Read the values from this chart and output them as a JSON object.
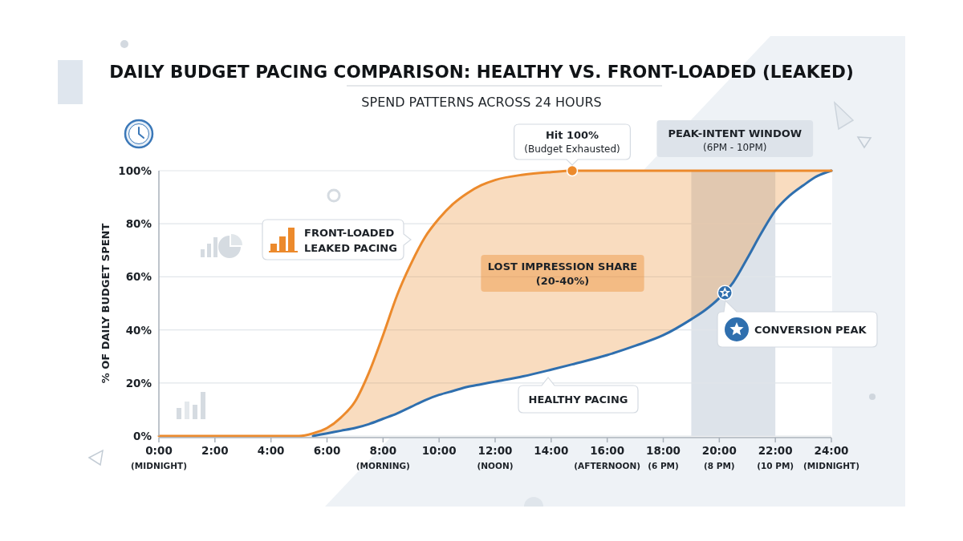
{
  "chart_data": {
    "type": "line",
    "title": "DAILY BUDGET PACING COMPARISON: HEALTHY VS. FRONT-LOADED (LEAKED)",
    "subtitle": "SPEND PATTERNS ACROSS 24 HOURS",
    "ylabel": "% OF DAILY BUDGET SPENT",
    "x": [
      0,
      1,
      2,
      3,
      4,
      5,
      5.5,
      6,
      6.5,
      7,
      7.5,
      8,
      8.5,
      9,
      9.5,
      10,
      10.5,
      11,
      11.5,
      12,
      13,
      14,
      14.75,
      16,
      17,
      18,
      19,
      19.5,
      20,
      20.5,
      21,
      21.5,
      22,
      22.5,
      23,
      23.5,
      24
    ],
    "xlim": [
      0,
      24
    ],
    "xticks": [
      {
        "value": 0,
        "label": "0:00\n(MIDNIGHT)"
      },
      {
        "value": 2,
        "label": "2:00"
      },
      {
        "value": 4,
        "label": "4:00"
      },
      {
        "value": 6,
        "label": "6:00"
      },
      {
        "value": 8,
        "label": "8:00\n(MORNING)"
      },
      {
        "value": 10,
        "label": "10:00"
      },
      {
        "value": 12,
        "label": "12:00\n(NOON)"
      },
      {
        "value": 14,
        "label": "14:00"
      },
      {
        "value": 16,
        "label": "16:00\n(AFTERNOON)"
      },
      {
        "value": 18,
        "label": "18:00\n(6 PM)"
      },
      {
        "value": 20,
        "label": "20:00\n(8 PM)"
      },
      {
        "value": 22,
        "label": "22:00\n(10 PM)"
      },
      {
        "value": 24,
        "label": "24:00\n(MIDNIGHT)"
      }
    ],
    "ylim": [
      0,
      100
    ],
    "yticks": [
      {
        "value": 0,
        "label": "0%"
      },
      {
        "value": 20,
        "label": "20%"
      },
      {
        "value": 40,
        "label": "40%"
      },
      {
        "value": 60,
        "label": "60%"
      },
      {
        "value": 80,
        "label": "80%"
      },
      {
        "value": 100,
        "label": "100%"
      }
    ],
    "grid": "y",
    "series": [
      {
        "name": "HEALTHY PACING",
        "color": "#2f6fae",
        "values": [
          null,
          null,
          null,
          null,
          null,
          null,
          0,
          1,
          2,
          3,
          4.5,
          6.5,
          8.5,
          11,
          13.5,
          15.5,
          17,
          18.5,
          19.5,
          20.5,
          22.5,
          25,
          27,
          30.5,
          34,
          38,
          44,
          47.5,
          52,
          58,
          67,
          76.5,
          85,
          90.5,
          94.5,
          98,
          100
        ]
      },
      {
        "name": "FRONT-LOADED LEAKED PACING",
        "color": "#ec8a2c",
        "values": [
          0,
          0,
          0,
          0,
          0,
          0,
          1,
          3,
          7,
          13,
          24,
          38,
          53,
          65,
          75,
          82,
          87.5,
          91.5,
          94.5,
          96.5,
          98.5,
          99.5,
          100,
          100,
          100,
          100,
          100,
          100,
          100,
          100,
          100,
          100,
          100,
          100,
          100,
          100,
          100
        ],
        "lower": [
          null,
          null,
          null,
          null,
          null,
          null,
          0,
          1,
          2,
          3,
          4.5,
          6.5,
          8.5,
          11,
          13.5,
          15.5,
          17,
          18.5,
          19.5,
          20.5,
          22.5,
          25,
          27,
          30.5,
          34,
          38,
          44,
          47.5,
          52,
          58,
          67,
          76.5,
          85,
          90.5,
          94.5,
          98,
          100
        ],
        "upper": [
          null,
          null,
          null,
          null,
          null,
          null,
          1,
          3,
          7,
          13,
          24,
          38,
          53,
          65,
          75,
          82,
          87.5,
          91.5,
          94.5,
          96.5,
          98.5,
          99.5,
          100,
          100,
          100,
          100,
          100,
          100,
          100,
          100,
          100,
          100,
          100,
          100,
          100,
          100,
          100
        ]
      },
      {
        "type": "scatter",
        "x": [
          14.75
        ],
        "values": [
          100
        ],
        "color": "#ec8a2c",
        "marker": "circle"
      },
      {
        "type": "scatter",
        "x": [
          20.2
        ],
        "values": [
          54
        ],
        "color": "#2f6fae",
        "marker": "star"
      }
    ],
    "bands": [
      {
        "axis": "x",
        "from": 19,
        "to": 22,
        "label": "PEAK-INTENT WINDOW\n(6PM - 10PM)",
        "color": "#dde3ea"
      }
    ],
    "annotations": [
      {
        "text": "Hit 100%\n(Budget Exhausted)",
        "x": 14.75,
        "y": 100
      },
      "LOST IMPRESSION SHARE\n(20-40%)",
      "CONVERSION PEAK"
    ]
  }
}
